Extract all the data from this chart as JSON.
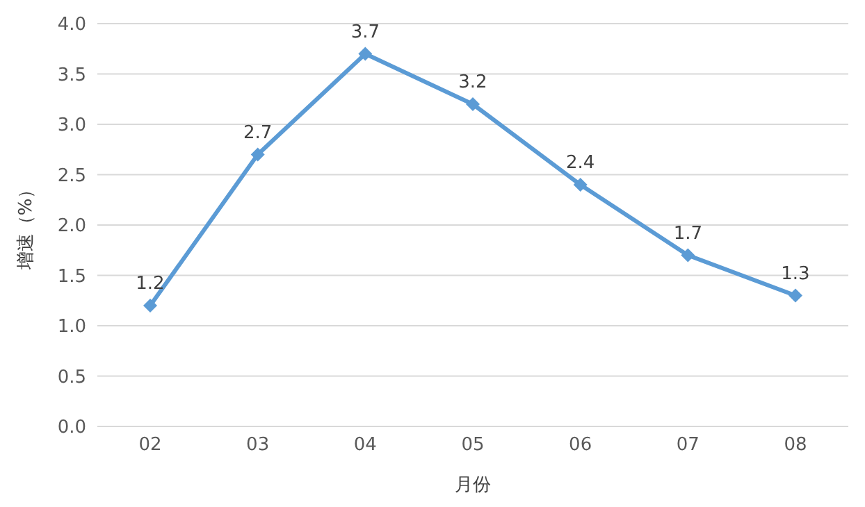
{
  "chart_data": {
    "type": "line",
    "xlabel": "月份",
    "ylabel": "增速（%）",
    "categories": [
      "02",
      "03",
      "04",
      "05",
      "06",
      "07",
      "08"
    ],
    "series": [
      {
        "color": "#5b9bd5",
        "values": [
          1.2,
          2.7,
          3.7,
          3.2,
          2.4,
          1.7,
          1.3
        ]
      }
    ],
    "ylim": [
      0,
      4
    ],
    "yticks": [
      {
        "value": 0,
        "label": "0.0"
      },
      {
        "value": 0.5,
        "label": "0.5"
      },
      {
        "value": 1,
        "label": "1.0"
      },
      {
        "value": 1.5,
        "label": "1.5"
      },
      {
        "value": 2,
        "label": "2.0"
      },
      {
        "value": 2.5,
        "label": "2.5"
      },
      {
        "value": 3,
        "label": "3.0"
      },
      {
        "value": 3.5,
        "label": "3.5"
      },
      {
        "value": 4,
        "label": "4.0"
      }
    ],
    "grid": "y",
    "marker": "diamond",
    "line_style": "solid",
    "data_labels": true,
    "legend": false
  }
}
